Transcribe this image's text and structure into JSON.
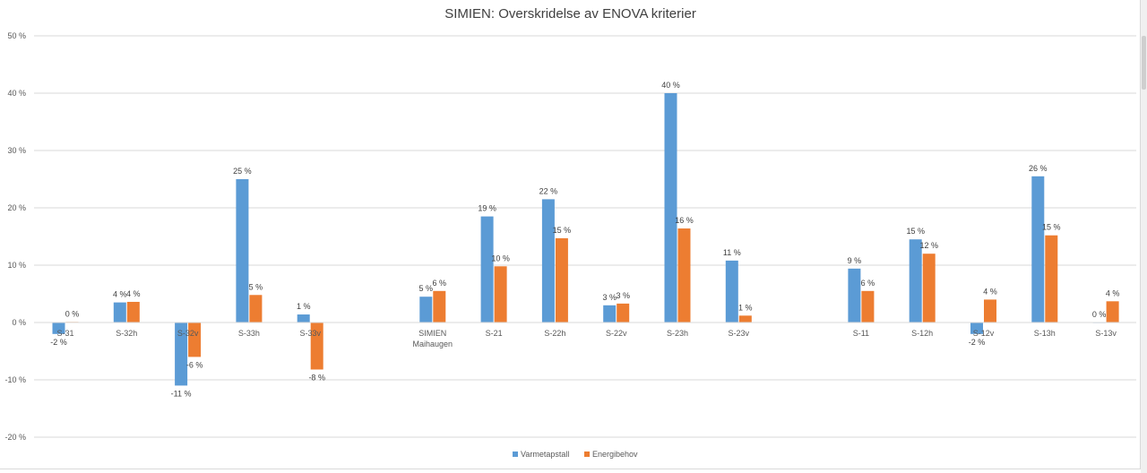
{
  "chart_data": {
    "type": "bar",
    "title": "SIMIEN: Overskridelse av ENOVA kriterier",
    "ylim": [
      -20,
      50
    ],
    "yticks": [
      "-20 %",
      "-10 %",
      "0 %",
      "10 %",
      "20 %",
      "30 %",
      "40 %",
      "50 %"
    ],
    "ytick_values": [
      -20,
      -10,
      0,
      10,
      20,
      30,
      40,
      50
    ],
    "grid": true,
    "legend_position": "bottom",
    "categories": [
      [
        "S-31"
      ],
      [
        "S-32h"
      ],
      [
        "S-32v"
      ],
      [
        "S-33h"
      ],
      [
        "S-33v"
      ],
      [
        "SIMIEN",
        "Maihaugen"
      ],
      [
        "S-21"
      ],
      [
        "S-22h"
      ],
      [
        "S-22v"
      ],
      [
        "S-23h"
      ],
      [
        "S-23v"
      ],
      [
        "S-11"
      ],
      [
        "S-12h"
      ],
      [
        "S-12v"
      ],
      [
        "S-13h"
      ],
      [
        "S-13v"
      ]
    ],
    "groups": [
      [
        0,
        1,
        2,
        3,
        4
      ],
      [
        5,
        6,
        7,
        8,
        9,
        10
      ],
      [
        11,
        12,
        13,
        14,
        15
      ]
    ],
    "series": [
      {
        "name": "Varmetapstall",
        "color": "#5b9bd5",
        "values": [
          -2,
          3.5,
          -11,
          25,
          1.4,
          4.5,
          18.5,
          21.5,
          3,
          40,
          10.8,
          9.4,
          14.5,
          -2,
          25.5,
          0
        ],
        "labels": [
          "-2 %",
          "4 %",
          "-11 %",
          "25 %",
          "1 %",
          "5 %",
          "19 %",
          "22 %",
          "3 %",
          "40 %",
          "11 %",
          "9 %",
          "15 %",
          "-2 %",
          "26 %",
          "0 %"
        ]
      },
      {
        "name": "Energibehov",
        "color": "#ed7d31",
        "values": [
          0.1,
          3.6,
          -6,
          4.8,
          -8.2,
          5.5,
          9.8,
          14.7,
          3.3,
          16.4,
          1.2,
          5.5,
          12,
          4,
          15.2,
          3.7
        ],
        "labels": [
          "0 %",
          "4 %",
          "-6 %",
          "5 %",
          "-8 %",
          "6 %",
          "10 %",
          "15 %",
          "3 %",
          "16 %",
          "1 %",
          "6 %",
          "12 %",
          "4 %",
          "15 %",
          "4 %"
        ]
      }
    ]
  }
}
